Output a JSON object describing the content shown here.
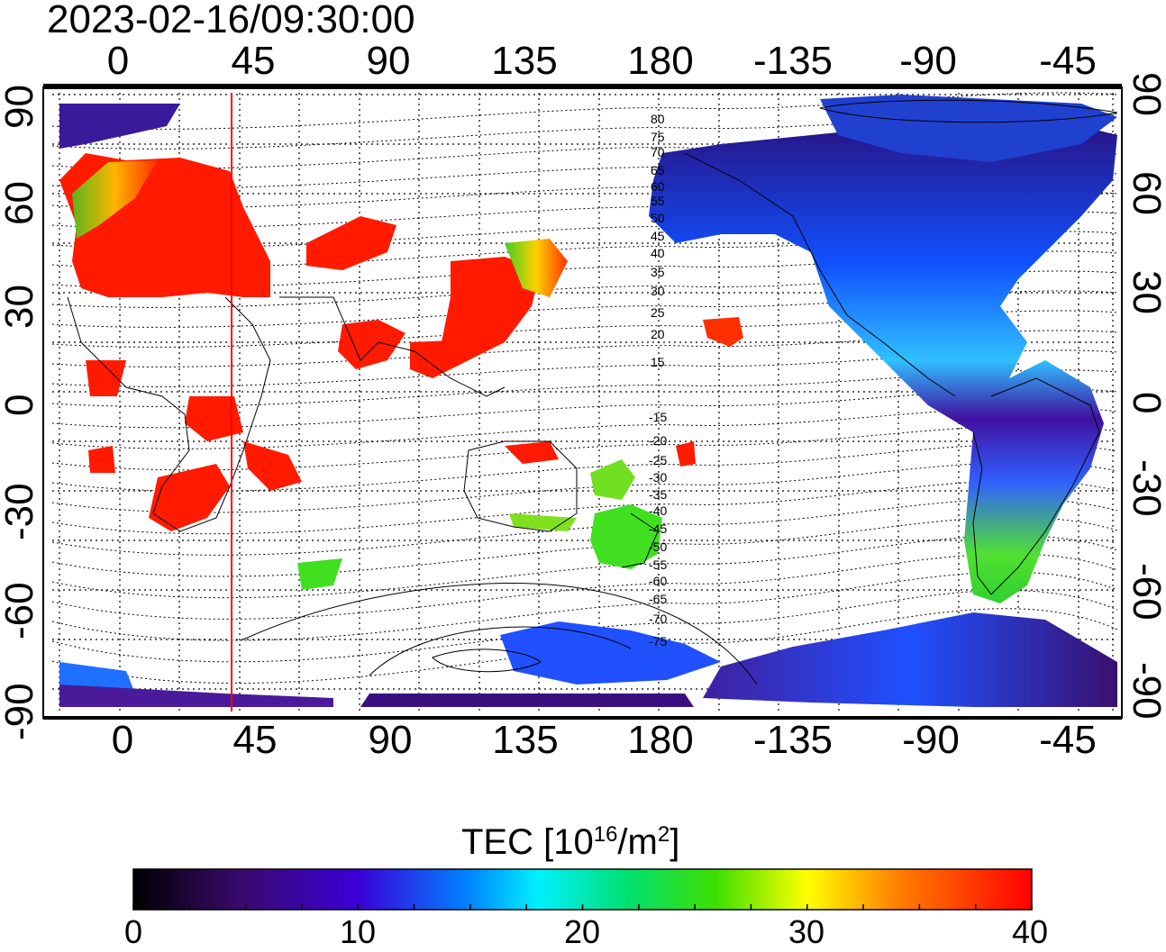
{
  "timestamp": "2023-02-16/09:30:00",
  "longitude_ticks": [
    "0",
    "45",
    "90",
    "135",
    "180",
    "-135",
    "-90",
    "-45"
  ],
  "latitude_ticks": [
    "90",
    "60",
    "30",
    "0",
    "-30",
    "-60",
    "-90"
  ],
  "colorbar": {
    "title_main": "TEC  [10",
    "title_exp": "16",
    "title_unit": "/m",
    "title_unit_exp": "2",
    "title_close": "]",
    "ticks": [
      "0",
      "10",
      "20",
      "30",
      "40"
    ],
    "range": [
      0,
      40
    ],
    "colormap_stops": [
      "#000000",
      "#4b0082",
      "#0000ff",
      "#00ffff",
      "#00ff00",
      "#ffff00",
      "#ff8000",
      "#ff0000"
    ]
  },
  "contour_labels_north": [
    "80",
    "75",
    "70",
    "65",
    "60",
    "55",
    "50",
    "45",
    "40",
    "35",
    "30",
    "25",
    "20",
    "15"
  ],
  "contour_labels_south": [
    "-15",
    "-20",
    "-25",
    "-30",
    "-35",
    "-40",
    "-45",
    "-50",
    "-55",
    "-60",
    "-65",
    "-70",
    "-75"
  ],
  "map": {
    "meridian_marker_longitude": 38,
    "grid": true,
    "colors": {
      "high_tec": "#ff1a00",
      "low_tec": "#3a0a8a",
      "mid_tec": "#2f6fff",
      "green_tec": "#35e02a",
      "marker_line": "#ff0000"
    }
  }
}
